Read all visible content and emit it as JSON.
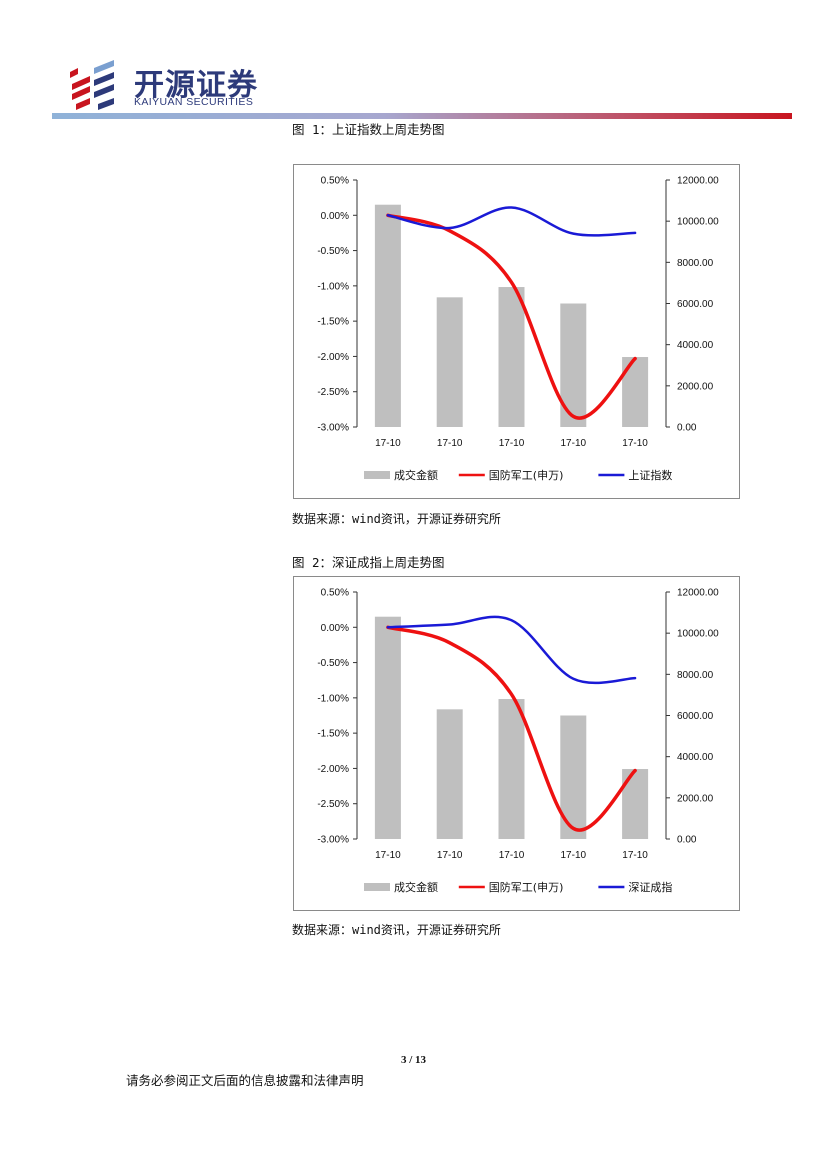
{
  "header": {
    "logo_cn": "开源证券",
    "logo_en": "KAIYUAN SECURITIES",
    "colors": {
      "brand_blue": "#2d3a7a",
      "brand_red": "#c8151f"
    }
  },
  "figures": [
    {
      "caption": "图 1：上证指数上周走势图",
      "source": "数据来源：wind资讯，开源证券研究所"
    },
    {
      "caption": "图 2：深证成指上周走势图",
      "source": "数据来源：wind资讯，开源证券研究所"
    }
  ],
  "chart_data": [
    {
      "type": "bar+line",
      "categories": [
        "17-10",
        "17-10",
        "17-10",
        "17-10",
        "17-10"
      ],
      "left_axis": {
        "ticks": [
          "0.50%",
          "0.00%",
          "-0.50%",
          "-1.00%",
          "-1.50%",
          "-2.00%",
          "-2.50%",
          "-3.00%"
        ],
        "ylim": [
          -3.0,
          0.5
        ]
      },
      "right_axis": {
        "ticks": [
          "12000.00",
          "10000.00",
          "8000.00",
          "6000.00",
          "4000.00",
          "2000.00",
          "0.00"
        ],
        "ylim": [
          0,
          12000
        ]
      },
      "series": [
        {
          "name": "成交金额",
          "kind": "bar",
          "axis": "right",
          "color": "#bfbfbf",
          "values": [
            10800,
            6300,
            6800,
            6000,
            3400
          ]
        },
        {
          "name": "国防军工(申万)",
          "kind": "line",
          "axis": "left",
          "color": "#ee1111",
          "values": [
            0.0,
            -0.22,
            -0.95,
            -2.85,
            -2.03
          ]
        },
        {
          "name": "上证指数",
          "kind": "line",
          "axis": "left",
          "color": "#1a1ad6",
          "values": [
            0.0,
            -0.18,
            0.11,
            -0.26,
            -0.25
          ]
        }
      ],
      "grid": false,
      "legend": "bottom"
    },
    {
      "type": "bar+line",
      "categories": [
        "17-10",
        "17-10",
        "17-10",
        "17-10",
        "17-10"
      ],
      "left_axis": {
        "ticks": [
          "0.50%",
          "0.00%",
          "-0.50%",
          "-1.00%",
          "-1.50%",
          "-2.00%",
          "-2.50%",
          "-3.00%"
        ],
        "ylim": [
          -3.0,
          0.5
        ]
      },
      "right_axis": {
        "ticks": [
          "12000.00",
          "10000.00",
          "8000.00",
          "6000.00",
          "4000.00",
          "2000.00",
          "0.00"
        ],
        "ylim": [
          0,
          12000
        ]
      },
      "series": [
        {
          "name": "成交金额",
          "kind": "bar",
          "axis": "right",
          "color": "#bfbfbf",
          "values": [
            10800,
            6300,
            6800,
            6000,
            3400
          ]
        },
        {
          "name": "国防军工(申万)",
          "kind": "line",
          "axis": "left",
          "color": "#ee1111",
          "values": [
            0.0,
            -0.22,
            -0.95,
            -2.85,
            -2.03
          ]
        },
        {
          "name": "深证成指",
          "kind": "line",
          "axis": "left",
          "color": "#1a1ad6",
          "values": [
            0.0,
            0.04,
            0.1,
            -0.73,
            -0.72
          ]
        }
      ],
      "grid": false,
      "legend": "bottom"
    }
  ],
  "footer": {
    "page_number": "3 / 13",
    "disclaimer": "请务必参阅正文后面的信息披露和法律声明"
  }
}
